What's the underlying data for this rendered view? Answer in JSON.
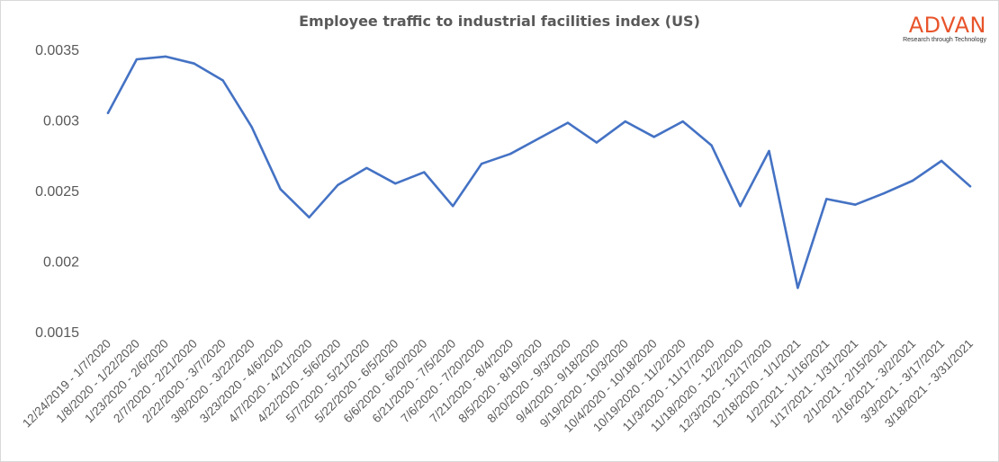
{
  "chart_data": {
    "type": "line",
    "title": "Employee traffic to industrial  facilities index (US)",
    "xlabel": "",
    "ylabel": "",
    "ylim": [
      0.0015,
      0.0035
    ],
    "yticks": [
      "0.0015",
      "0.002",
      "0.0025",
      "0.003",
      "0.0035"
    ],
    "grid": false,
    "legend": "none",
    "line_color": "#4472c4",
    "categories": [
      "12/24/2019 - 1/7/2020",
      "1/8/2020 - 1/22/2020",
      "1/23/2020 - 2/6/2020",
      "2/7/2020 - 2/21/2020",
      "2/22/2020 - 3/7/2020",
      "3/8/2020 - 3/22/2020",
      "3/23/2020 - 4/6/2020",
      "4/7/2020 - 4/21/2020",
      "4/22/2020 - 5/6/2020",
      "5/7/2020 - 5/21/2020",
      "5/22/2020 - 6/5/2020",
      "6/6/2020 - 6/20/2020",
      "6/21/2020 - 7/5/2020",
      "7/6/2020 - 7/20/2020",
      "7/21/2020 - 8/4/2020",
      "8/5/2020 - 8/19/2020",
      "8/20/2020 - 9/3/2020",
      "9/4/2020 - 9/18/2020",
      "9/19/2020 - 10/3/2020",
      "10/4/2020 - 10/18/2020",
      "10/19/2020 - 11/2/2020",
      "11/3/2020 - 11/17/2020",
      "11/18/2020 - 12/2/2020",
      "12/3/2020 - 12/17/2020",
      "12/18/2020 - 1/1/2021",
      "1/2/2021 - 1/16/2021",
      "1/17/2021 - 1/31/2021",
      "2/1/2021 - 2/15/2021",
      "2/16/2021 - 3/2/2021",
      "3/3/2021 - 3/17/2021",
      "3/18/2021 - 3/31/2021"
    ],
    "series": [
      {
        "values": [
          0.00305,
          0.00343,
          0.00345,
          0.0034,
          0.00328,
          0.00295,
          0.00251,
          0.00231,
          0.00254,
          0.00266,
          0.00255,
          0.00263,
          0.00239,
          0.00269,
          0.00276,
          0.00287,
          0.00298,
          0.00284,
          0.00299,
          0.00288,
          0.00299,
          0.00282,
          0.00239,
          0.00278,
          0.00181,
          0.00244,
          0.0024,
          0.00248,
          0.00257,
          0.00271,
          0.00253
        ]
      }
    ]
  },
  "logo": {
    "word": "ADVAN",
    "tagline": "Research through Technology",
    "color": "#e8542b"
  }
}
